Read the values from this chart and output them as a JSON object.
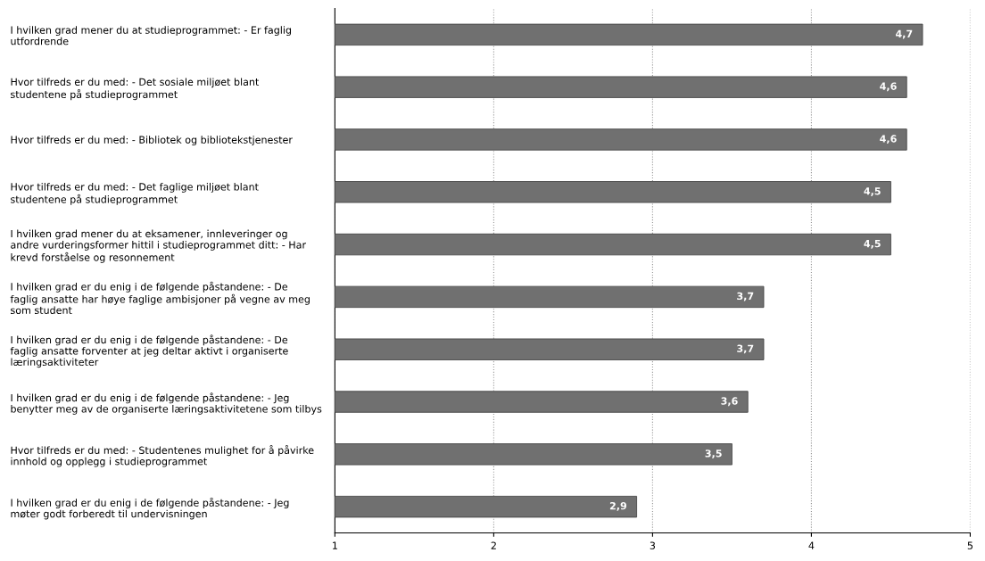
{
  "chart_data": {
    "type": "bar",
    "orientation": "horizontal",
    "categories": [
      "I hvilken grad mener du at studieprogrammet: - Er faglig\nutfordrende",
      "Hvor tilfreds er du med: - Det sosiale miljøet blant\nstudentene på studieprogrammet",
      "Hvor tilfreds er du med: - Bibliotek og bibliotekstjenester",
      "Hvor tilfreds er du med: - Det faglige miljøet blant\nstudentene på studieprogrammet",
      "I hvilken grad mener du at eksamener, innleveringer og\nandre vurderingsformer hittil i studieprogrammet ditt: - Har\nkrevd forståelse og resonnement",
      "I hvilken grad er du enig i de følgende påstandene: - De\nfaglig ansatte har høye faglige ambisjoner på vegne av meg\nsom student",
      "I hvilken grad er du enig i de følgende påstandene: - De\nfaglig ansatte forventer at jeg deltar aktivt i organiserte\nlæringsaktiviteter",
      "I hvilken grad er du enig i de følgende påstandene: - Jeg\nbenytter meg av de organiserte læringsaktivitetene som tilbys",
      "Hvor tilfreds er du med: - Studentenes mulighet for å påvirke\ninnhold og opplegg i studieprogrammet",
      "I hvilken grad er du enig i de følgende påstandene: - Jeg\nmøter godt forberedt til undervisningen"
    ],
    "values": [
      4.7,
      4.6,
      4.6,
      4.5,
      4.5,
      3.7,
      3.7,
      3.6,
      3.5,
      2.9
    ],
    "value_labels": [
      "4,7",
      "4,6",
      "4,6",
      "4,5",
      "4,5",
      "3,7",
      "3,7",
      "3,6",
      "3,5",
      "2,9"
    ],
    "color": "#707070",
    "xlim": [
      1,
      5
    ],
    "xticks": [
      1,
      2,
      3,
      4,
      5
    ],
    "grid": "x"
  }
}
